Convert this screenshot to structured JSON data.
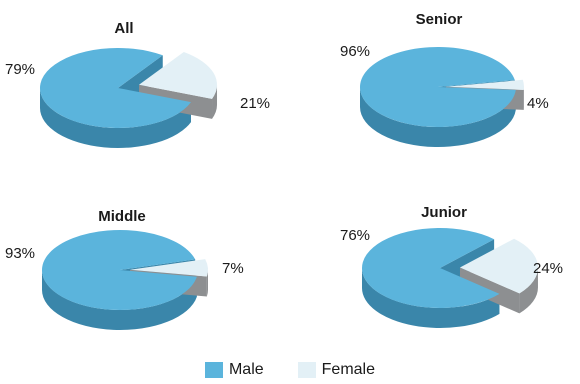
{
  "chart_data": [
    {
      "type": "pie",
      "title": "All",
      "categories": [
        "Male",
        "Female"
      ],
      "values": [
        79,
        21
      ],
      "labels": [
        "79%",
        "21%"
      ]
    },
    {
      "type": "pie",
      "title": "Senior",
      "categories": [
        "Male",
        "Female"
      ],
      "values": [
        96,
        4
      ],
      "labels": [
        "96%",
        "4%"
      ]
    },
    {
      "type": "pie",
      "title": "Middle",
      "categories": [
        "Male",
        "Female"
      ],
      "values": [
        93,
        7
      ],
      "labels": [
        "93%",
        "7%"
      ]
    },
    {
      "type": "pie",
      "title": "Junior",
      "categories": [
        "Male",
        "Female"
      ],
      "values": [
        76,
        24
      ],
      "labels": [
        "76%",
        "24%"
      ]
    }
  ],
  "legend": [
    {
      "label": "Male",
      "color": "#5bb4dc"
    },
    {
      "label": "Female",
      "color": "#e3f0f6"
    }
  ],
  "colors": {
    "male_top": "#5bb4dc",
    "male_side": "#3a86aa",
    "female_top": "#e3f0f6",
    "female_side": "#8d8f91"
  }
}
